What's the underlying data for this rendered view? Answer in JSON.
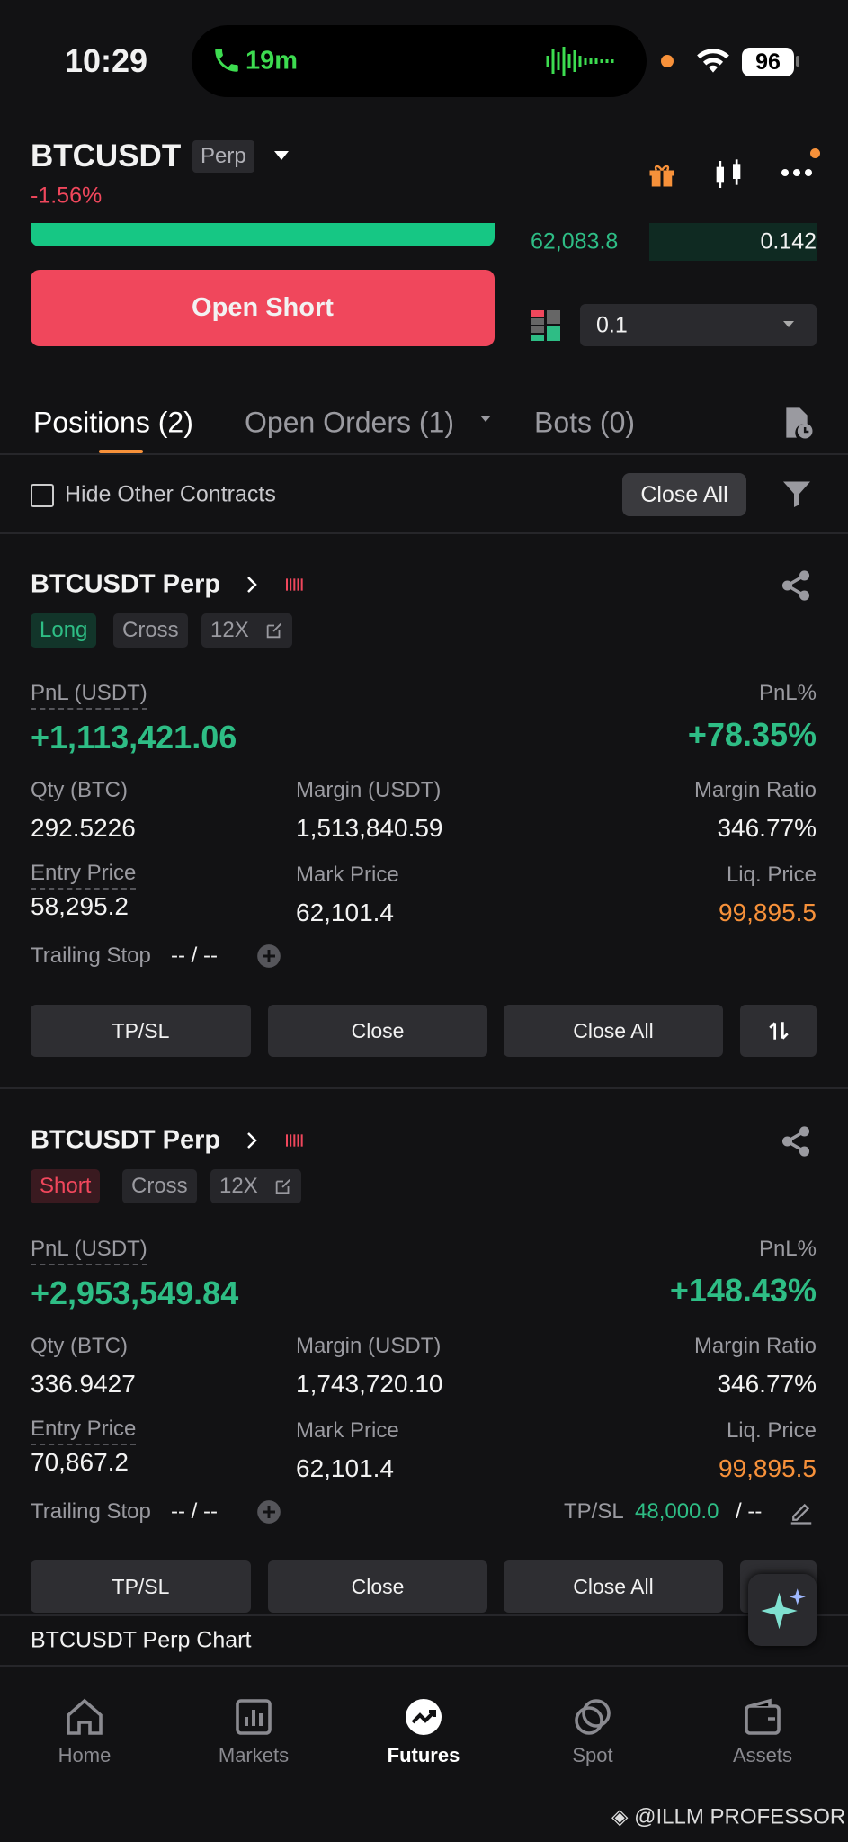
{
  "status_bar": {
    "time": "10:29",
    "call_duration": "19m",
    "battery": "96"
  },
  "header": {
    "symbol": "BTCUSDT",
    "contract_type": "Perp",
    "change": "-1.56%"
  },
  "order_panel": {
    "price": "62,083.8",
    "quantity": "0.142",
    "amount": "0.1",
    "submit": "Open Short"
  },
  "tabs": [
    "Positions (2)",
    "Open Orders (1)",
    "Bots (0)"
  ],
  "filter": {
    "hide_other": "Hide Other Contracts",
    "close_all": "Close All"
  },
  "positions": [
    {
      "title": "BTCUSDT Perp",
      "side": "Long",
      "margin_mode": "Cross",
      "leverage": "12X",
      "pnl_label": "PnL (USDT)",
      "pnl": "+1,113,421.06",
      "pnl_pct_label": "PnL%",
      "pnl_pct": "+78.35%",
      "fields": [
        {
          "label": "Qty (BTC)",
          "value": "292.5226"
        },
        {
          "label": "Margin (USDT)",
          "value": "1,513,840.59"
        },
        {
          "label": "Margin Ratio",
          "value": "346.77%"
        },
        {
          "label": "Entry Price",
          "value": "58,295.2"
        },
        {
          "label": "Mark Price",
          "value": "62,101.4"
        },
        {
          "label": "Liq. Price",
          "value": "99,895.5"
        }
      ],
      "trailing_label": "Trailing Stop",
      "trailing_value": "-- / --",
      "buttons": [
        "TP/SL",
        "Close",
        "Close All"
      ]
    },
    {
      "title": "BTCUSDT Perp",
      "side": "Short",
      "margin_mode": "Cross",
      "leverage": "12X",
      "pnl_label": "PnL (USDT)",
      "pnl": "+2,953,549.84",
      "pnl_pct_label": "PnL%",
      "pnl_pct": "+148.43%",
      "fields": [
        {
          "label": "Qty (BTC)",
          "value": "336.9427"
        },
        {
          "label": "Margin (USDT)",
          "value": "1,743,720.10"
        },
        {
          "label": "Margin Ratio",
          "value": "346.77%"
        },
        {
          "label": "Entry Price",
          "value": "70,867.2"
        },
        {
          "label": "Mark Price",
          "value": "62,101.4"
        },
        {
          "label": "Liq. Price",
          "value": "99,895.5"
        }
      ],
      "trailing_label": "Trailing Stop",
      "trailing_value": "-- / --",
      "tpsl_label": "TP/SL",
      "tpsl_value": "48,000.0",
      "tpsl_rest": "/ --",
      "buttons": [
        "TP/SL",
        "Close",
        "Close All"
      ]
    }
  ],
  "chart_bar": "BTCUSDT Perp Chart",
  "nav": [
    "Home",
    "Markets",
    "Futures",
    "Spot",
    "Assets"
  ],
  "watermark": "@ILLM PROFESSOR"
}
